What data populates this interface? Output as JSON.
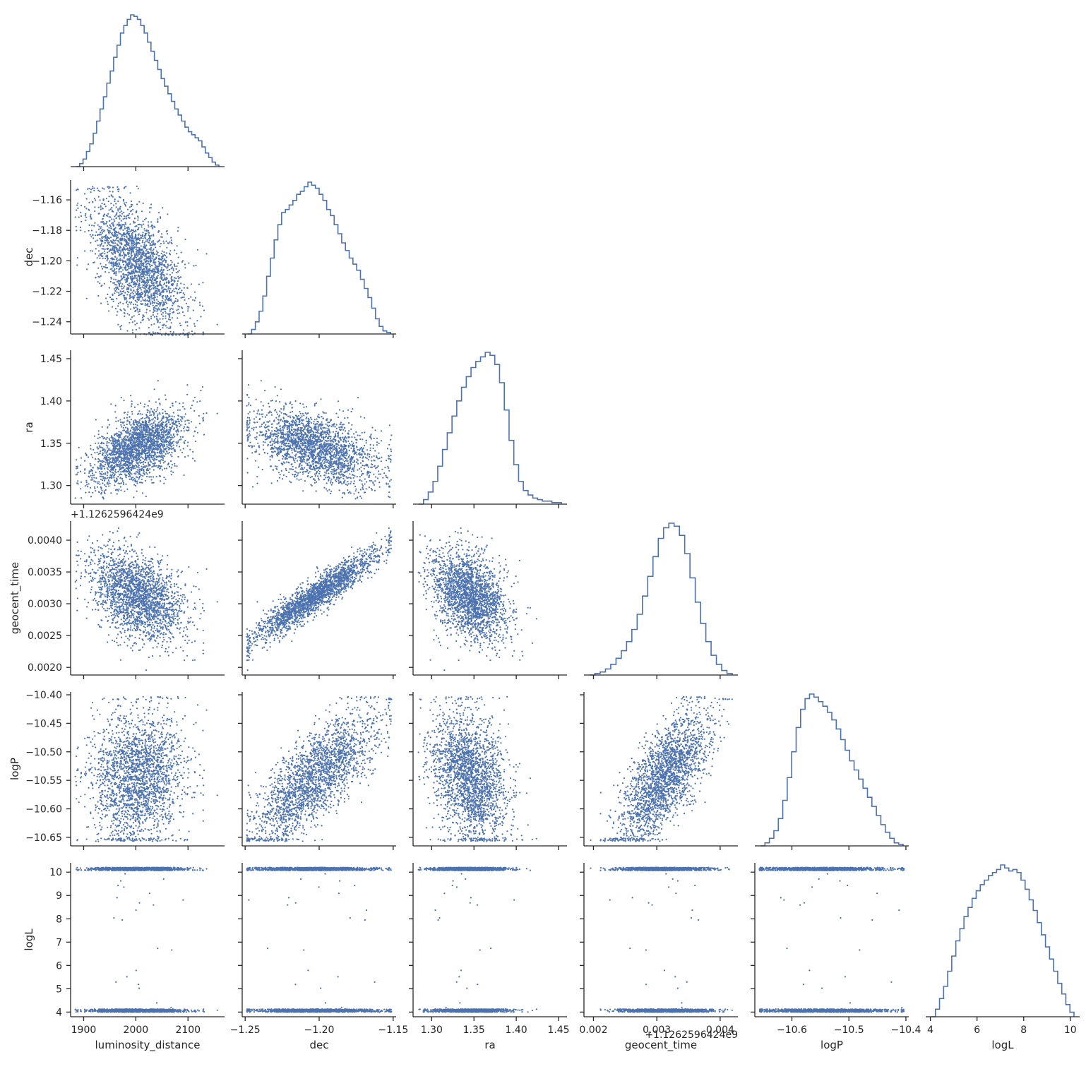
{
  "chart_data": {
    "type": "scatter",
    "kind": "corner-pairplot",
    "style": {
      "marker_color": "#4c72b0",
      "hist_color": "#4c72b0",
      "axis_color": "#262626",
      "background": "#ffffff",
      "grid": false
    },
    "variables": [
      {
        "name": "luminosity_distance",
        "label": "luminosity_distance",
        "range": [
          1875,
          2170
        ],
        "ticks": [
          1900,
          2000,
          2100
        ],
        "tick_labels": [
          "1900",
          "2000",
          "2100"
        ],
        "offset_text": "",
        "mean": 2005,
        "sd": 45,
        "hist_density": [
          0,
          0.02,
          0.05,
          0.1,
          0.15,
          0.22,
          0.3,
          0.38,
          0.46,
          0.55,
          0.63,
          0.72,
          0.8,
          0.88,
          0.93,
          0.97,
          1.0,
          0.99,
          0.97,
          0.93,
          0.88,
          0.82,
          0.76,
          0.7,
          0.64,
          0.58,
          0.53,
          0.48,
          0.43,
          0.38,
          0.34,
          0.3,
          0.26,
          0.23,
          0.21,
          0.19,
          0.17,
          0.13,
          0.09,
          0.06,
          0.03,
          0.01
        ]
      },
      {
        "name": "dec",
        "label": "dec",
        "ticks": [
          -1.25,
          -1.2,
          -1.15
        ],
        "tick_labels": [
          "−1.25",
          "−1.20",
          "−1.15"
        ],
        "y_ticks": [
          -1.24,
          -1.22,
          -1.2,
          -1.18,
          -1.16
        ],
        "y_tick_labels": [
          "−1.24",
          "−1.22",
          "−1.20",
          "−1.18",
          "−1.16"
        ],
        "range": [
          -1.252,
          -1.148
        ],
        "y_range": [
          -1.248,
          -1.147
        ],
        "offset_text": "",
        "mean": -1.203,
        "sd": 0.021,
        "hist_density": [
          0,
          0.03,
          0.08,
          0.15,
          0.25,
          0.38,
          0.5,
          0.62,
          0.72,
          0.8,
          0.82,
          0.85,
          0.88,
          0.92,
          0.94,
          0.97,
          1.0,
          0.98,
          0.96,
          0.92,
          0.88,
          0.82,
          0.78,
          0.72,
          0.66,
          0.6,
          0.55,
          0.5,
          0.46,
          0.42,
          0.36,
          0.3,
          0.24,
          0.17,
          0.1,
          0.05,
          0.02,
          0.01
        ]
      },
      {
        "name": "ra",
        "label": "ra",
        "ticks": [
          1.3,
          1.35,
          1.4,
          1.45
        ],
        "tick_labels": [
          "1.30",
          "1.35",
          "1.40",
          "1.45"
        ],
        "range": [
          1.278,
          1.46
        ],
        "y_range": [
          1.278,
          1.46
        ],
        "offset_text": "",
        "mean": 1.345,
        "sd": 0.022,
        "hist_density": [
          0,
          0.03,
          0.08,
          0.15,
          0.25,
          0.36,
          0.47,
          0.58,
          0.68,
          0.77,
          0.84,
          0.9,
          0.94,
          0.97,
          1.0,
          0.98,
          0.92,
          0.8,
          0.62,
          0.42,
          0.26,
          0.15,
          0.09,
          0.06,
          0.04,
          0.03,
          0.02,
          0.02,
          0.01,
          0.01
        ]
      },
      {
        "name": "geocent_time",
        "label": "geocent_time",
        "ticks": [
          0.002,
          0.003,
          0.004
        ],
        "tick_labels": [
          "0.002",
          "0.003",
          "0.004"
        ],
        "y_ticks": [
          0.002,
          0.0025,
          0.003,
          0.0035,
          0.004
        ],
        "y_tick_labels": [
          "0.0020",
          "0.0025",
          "0.0030",
          "0.0035",
          "0.0040"
        ],
        "range": [
          0.00185,
          0.00428
        ],
        "y_range": [
          0.00188,
          0.0043
        ],
        "offset_text": "+1.126259642​4e9",
        "mean": 0.00312,
        "sd": 0.00035,
        "hist_density": [
          0,
          0.01,
          0.02,
          0.04,
          0.07,
          0.11,
          0.16,
          0.22,
          0.3,
          0.4,
          0.52,
          0.65,
          0.78,
          0.9,
          0.97,
          1.0,
          0.98,
          0.92,
          0.8,
          0.64,
          0.48,
          0.34,
          0.22,
          0.13,
          0.07,
          0.03,
          0.01
        ]
      },
      {
        "name": "logP",
        "label": "logP",
        "ticks": [
          -10.6,
          -10.5,
          -10.4
        ],
        "tick_labels": [
          "−10.6",
          "−10.5",
          "−10.4"
        ],
        "y_ticks": [
          -10.65,
          -10.6,
          -10.55,
          -10.5,
          -10.45,
          -10.4
        ],
        "y_tick_labels": [
          "−10.65",
          "−10.60",
          "−10.55",
          "−10.50",
          "−10.45",
          "−10.40"
        ],
        "range": [
          -10.665,
          -10.395
        ],
        "y_range": [
          -10.665,
          -10.395
        ],
        "offset_text": "",
        "mean": -10.545,
        "sd": 0.045,
        "hist_density": [
          0,
          0.02,
          0.05,
          0.1,
          0.18,
          0.3,
          0.45,
          0.62,
          0.78,
          0.9,
          0.97,
          1.0,
          0.98,
          0.95,
          0.92,
          0.88,
          0.83,
          0.77,
          0.7,
          0.63,
          0.56,
          0.5,
          0.44,
          0.38,
          0.32,
          0.26,
          0.2,
          0.14,
          0.09,
          0.05,
          0.02,
          0.01
        ]
      },
      {
        "name": "logL",
        "label": "logL",
        "ticks": [
          4,
          6,
          8,
          10
        ],
        "tick_labels": [
          "4",
          "6",
          "8",
          "10"
        ],
        "y_ticks": [
          4,
          5,
          6,
          7,
          8,
          9,
          10
        ],
        "y_tick_labels": [
          "4",
          "5",
          "6",
          "7",
          "8",
          "9",
          "10"
        ],
        "range": [
          3.8,
          10.4
        ],
        "y_range": [
          3.8,
          10.4
        ],
        "offset_text": "",
        "mean": 6.9,
        "sd": 1.3,
        "hist_density": [
          0,
          0.05,
          0.12,
          0.2,
          0.3,
          0.4,
          0.5,
          0.58,
          0.66,
          0.72,
          0.78,
          0.83,
          0.87,
          0.9,
          0.93,
          0.95,
          0.97,
          1.0,
          0.98,
          0.96,
          0.97,
          0.95,
          0.9,
          0.84,
          0.77,
          0.7,
          0.62,
          0.54,
          0.46,
          0.38,
          0.3,
          0.22,
          0.15,
          0.08,
          0.03
        ]
      }
    ],
    "corner_offset_text": "+1.126259642​4e9",
    "bottom_offset_text": "+1.126259642​4e9",
    "n_points": 2200,
    "correlations": [
      [
        1,
        -0.55,
        0.5,
        -0.4,
        0.1,
        0.45
      ],
      [
        -0.55,
        1,
        -0.45,
        0.93,
        0.96,
        -0.35
      ],
      [
        0.5,
        -0.45,
        1,
        -0.35,
        -0.35,
        0.3
      ],
      [
        -0.4,
        0.93,
        -0.35,
        1,
        0.88,
        -0.45
      ],
      [
        0.1,
        0.96,
        -0.35,
        0.88,
        1,
        -0.25
      ],
      [
        0.45,
        -0.35,
        0.3,
        -0.45,
        -0.25,
        1
      ]
    ]
  }
}
